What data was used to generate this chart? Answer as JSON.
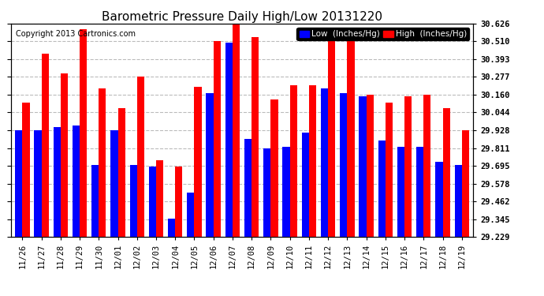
{
  "title": "Barometric Pressure Daily High/Low 20131220",
  "copyright": "Copyright 2013 Cartronics.com",
  "legend_low": "Low  (Inches/Hg)",
  "legend_high": "High  (Inches/Hg)",
  "dates": [
    "11/26",
    "11/27",
    "11/28",
    "11/29",
    "11/30",
    "12/01",
    "12/02",
    "12/03",
    "12/04",
    "12/05",
    "12/06",
    "12/07",
    "12/08",
    "12/09",
    "12/10",
    "12/11",
    "12/12",
    "12/13",
    "12/14",
    "12/15",
    "12/16",
    "12/17",
    "12/18",
    "12/19"
  ],
  "low": [
    29.93,
    29.93,
    29.95,
    29.96,
    29.7,
    29.93,
    29.7,
    29.69,
    29.35,
    29.52,
    30.17,
    30.5,
    29.87,
    29.81,
    29.82,
    29.91,
    30.2,
    30.17,
    30.15,
    29.86,
    29.82,
    29.82,
    29.72,
    29.7
  ],
  "high": [
    30.11,
    30.43,
    30.3,
    30.59,
    30.2,
    30.07,
    30.28,
    29.73,
    29.69,
    30.21,
    30.51,
    30.63,
    30.54,
    30.13,
    30.22,
    30.22,
    30.51,
    30.51,
    30.16,
    30.11,
    30.15,
    30.16,
    30.07,
    29.93
  ],
  "ymin": 29.229,
  "ymax": 30.626,
  "yticks": [
    29.229,
    29.345,
    29.462,
    29.578,
    29.695,
    29.811,
    29.928,
    30.044,
    30.16,
    30.277,
    30.393,
    30.51,
    30.626
  ],
  "bar_width": 0.38,
  "low_color": "#0000ff",
  "high_color": "#ff0000",
  "bg_color": "#ffffff",
  "grid_color": "#bbbbbb",
  "title_fontsize": 11,
  "tick_fontsize": 7.5,
  "legend_fontsize": 7.5,
  "copyright_fontsize": 7
}
